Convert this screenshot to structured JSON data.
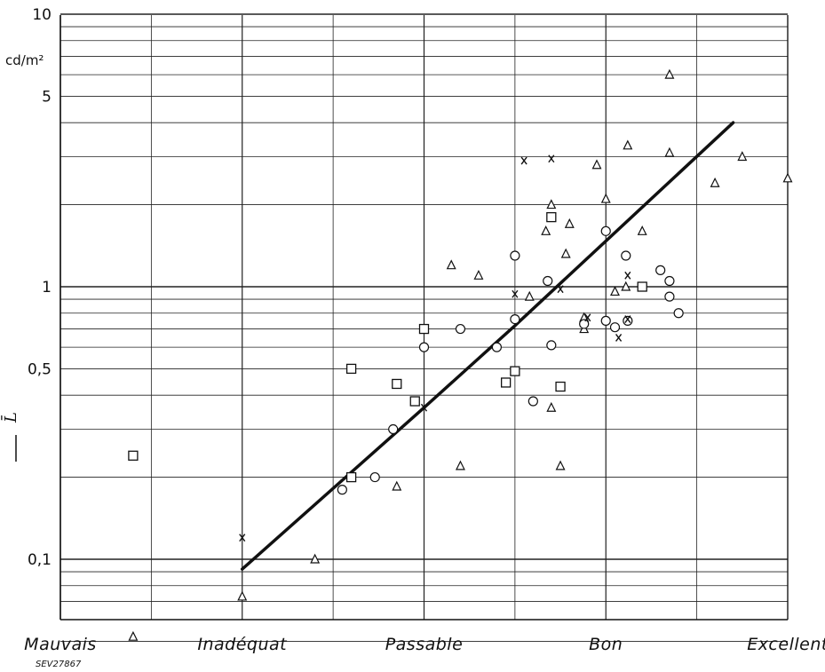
{
  "chart_data": {
    "type": "scatter",
    "title": "",
    "xlabel": "",
    "ylabel": "L̄",
    "y_unit": "cd/m²",
    "y_scale": "log",
    "ylim": [
      0.05,
      10
    ],
    "y_ticks": [
      {
        "value": 10,
        "label": "10"
      },
      {
        "value": 5,
        "label": "5"
      },
      {
        "value": 1,
        "label": "1"
      },
      {
        "value": 0.5,
        "label": "0,5"
      },
      {
        "value": 0.1,
        "label": "0,1"
      }
    ],
    "xlim": [
      1,
      5
    ],
    "categories": [
      "Mauvais",
      "Inadéquat",
      "Passable",
      "Bon",
      "Excellent"
    ],
    "grid": true,
    "reference": "SEV27867",
    "trend_line": {
      "x": [
        2.0,
        3.0,
        3.5,
        4.7
      ],
      "y": [
        0.092,
        0.36,
        0.72,
        4.0
      ]
    },
    "series": [
      {
        "marker": "triangle",
        "points": [
          {
            "x": 1.4,
            "y": 0.052
          },
          {
            "x": 2.0,
            "y": 0.073
          },
          {
            "x": 2.4,
            "y": 0.1
          },
          {
            "x": 2.85,
            "y": 0.185
          },
          {
            "x": 3.75,
            "y": 0.22
          },
          {
            "x": 3.2,
            "y": 0.22
          },
          {
            "x": 3.15,
            "y": 1.2
          },
          {
            "x": 3.3,
            "y": 1.1
          },
          {
            "x": 3.58,
            "y": 0.92
          },
          {
            "x": 3.7,
            "y": 0.36
          },
          {
            "x": 3.7,
            "y": 2.0
          },
          {
            "x": 3.67,
            "y": 1.6
          },
          {
            "x": 3.8,
            "y": 1.7
          },
          {
            "x": 3.88,
            "y": 0.77
          },
          {
            "x": 3.88,
            "y": 0.7
          },
          {
            "x": 3.95,
            "y": 2.8
          },
          {
            "x": 4.0,
            "y": 2.1
          },
          {
            "x": 4.05,
            "y": 0.96
          },
          {
            "x": 4.12,
            "y": 3.3
          },
          {
            "x": 4.11,
            "y": 1.0
          },
          {
            "x": 4.2,
            "y": 1.6
          },
          {
            "x": 4.35,
            "y": 6.0
          },
          {
            "x": 4.35,
            "y": 3.1
          },
          {
            "x": 4.6,
            "y": 2.4
          },
          {
            "x": 4.75,
            "y": 3.0
          },
          {
            "x": 5.0,
            "y": 2.5
          },
          {
            "x": 3.78,
            "y": 1.32
          }
        ]
      },
      {
        "marker": "circle",
        "points": [
          {
            "x": 2.55,
            "y": 0.18
          },
          {
            "x": 2.73,
            "y": 0.2
          },
          {
            "x": 2.83,
            "y": 0.3
          },
          {
            "x": 3.4,
            "y": 0.6
          },
          {
            "x": 3.0,
            "y": 0.6
          },
          {
            "x": 3.2,
            "y": 0.7
          },
          {
            "x": 3.5,
            "y": 1.3
          },
          {
            "x": 3.5,
            "y": 0.76
          },
          {
            "x": 3.6,
            "y": 0.38
          },
          {
            "x": 3.7,
            "y": 0.61
          },
          {
            "x": 3.68,
            "y": 1.05
          },
          {
            "x": 3.88,
            "y": 0.73
          },
          {
            "x": 4.0,
            "y": 1.6
          },
          {
            "x": 4.0,
            "y": 0.75
          },
          {
            "x": 4.05,
            "y": 0.71
          },
          {
            "x": 4.11,
            "y": 1.3
          },
          {
            "x": 4.12,
            "y": 0.75
          },
          {
            "x": 4.3,
            "y": 1.15
          },
          {
            "x": 4.35,
            "y": 1.05
          },
          {
            "x": 4.35,
            "y": 0.92
          },
          {
            "x": 4.4,
            "y": 0.8
          }
        ]
      },
      {
        "marker": "square",
        "points": [
          {
            "x": 1.4,
            "y": 0.24
          },
          {
            "x": 2.6,
            "y": 0.5
          },
          {
            "x": 2.6,
            "y": 0.2
          },
          {
            "x": 2.85,
            "y": 0.44
          },
          {
            "x": 2.95,
            "y": 0.38
          },
          {
            "x": 3.0,
            "y": 0.7
          },
          {
            "x": 3.45,
            "y": 0.445
          },
          {
            "x": 3.5,
            "y": 0.49
          },
          {
            "x": 3.75,
            "y": 0.43
          },
          {
            "x": 3.7,
            "y": 1.8
          },
          {
            "x": 4.2,
            "y": 1.0
          }
        ]
      },
      {
        "marker": "cross",
        "points": [
          {
            "x": 2.0,
            "y": 0.12
          },
          {
            "x": 3.0,
            "y": 0.36
          },
          {
            "x": 3.5,
            "y": 0.94
          },
          {
            "x": 3.55,
            "y": 2.9
          },
          {
            "x": 3.7,
            "y": 2.95
          },
          {
            "x": 3.75,
            "y": 0.98
          },
          {
            "x": 3.9,
            "y": 0.77
          },
          {
            "x": 4.07,
            "y": 0.65
          },
          {
            "x": 4.12,
            "y": 1.1
          },
          {
            "x": 4.12,
            "y": 0.76
          }
        ]
      }
    ]
  }
}
